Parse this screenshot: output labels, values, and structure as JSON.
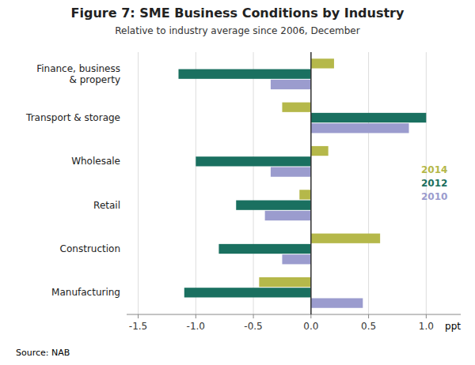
{
  "chart_data": {
    "type": "bar",
    "orientation": "horizontal",
    "title": "Figure 7: SME Business Conditions by Industry",
    "subtitle": "Relative to industry average since 2006, December",
    "xlabel": "ppt",
    "source": "Source:    NAB",
    "categories": [
      "Finance, business\n& property",
      "Transport & storage",
      "Wholesale",
      "Retail",
      "Construction",
      "Manufacturing"
    ],
    "series": [
      {
        "name": "2014",
        "color": "#b5b84a",
        "values": [
          0.2,
          -0.25,
          0.15,
          -0.1,
          0.6,
          -0.45
        ]
      },
      {
        "name": "2012",
        "color": "#1a7060",
        "values": [
          -1.15,
          1.0,
          -1.0,
          -0.65,
          -0.8,
          -1.1
        ]
      },
      {
        "name": "2010",
        "color": "#9b9cce",
        "values": [
          -0.35,
          0.85,
          -0.35,
          -0.4,
          -0.25,
          0.45
        ]
      }
    ],
    "xlim": [
      -1.6,
      1.3
    ],
    "xticks": [
      -1.5,
      {
        "value": -1.0,
        "label": "-1.0"
      },
      -0.5,
      {
        "value": 0.0,
        "label": "0.0"
      },
      0.5,
      {
        "value": 1.0,
        "label": "1.0"
      }
    ],
    "grid": true,
    "legend": "right"
  }
}
